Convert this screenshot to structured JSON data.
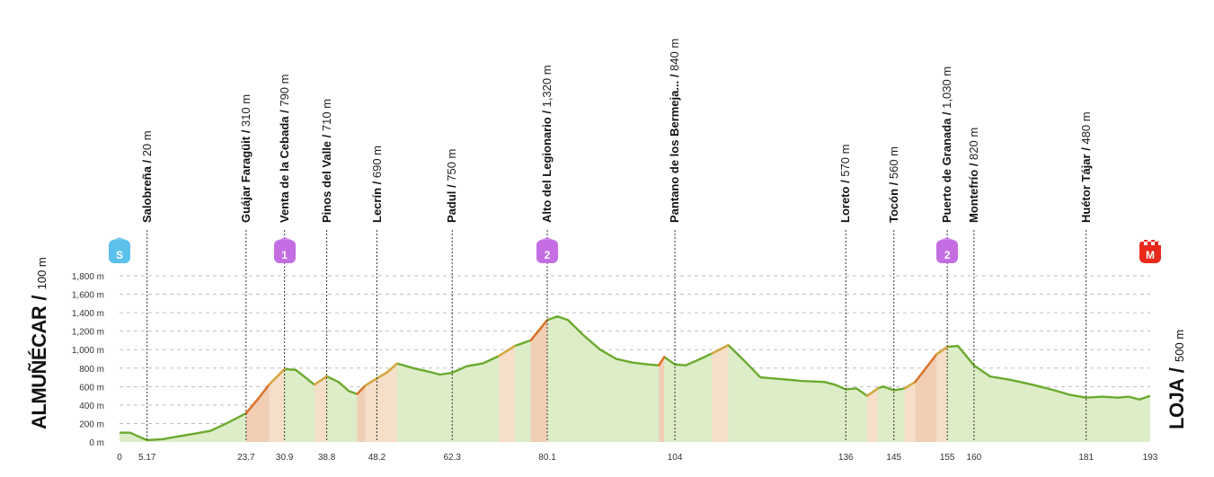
{
  "chart_data": {
    "type": "area",
    "title": "",
    "xlabel": "",
    "ylabel": "",
    "xlim": [
      0,
      193
    ],
    "ylim": [
      0,
      1800
    ],
    "grid": true,
    "y_ticks": [
      "0 m",
      "200 m",
      "400 m",
      "600 m",
      "800 m",
      "1,000 m",
      "1,200 m",
      "1,400 m",
      "1,600 m",
      "1,800 m"
    ],
    "y_tick_values": [
      0,
      200,
      400,
      600,
      800,
      1000,
      1200,
      1400,
      1600,
      1800
    ],
    "x_ticks": [
      "0",
      "5.17",
      "23.7",
      "30.9",
      "38.8",
      "48.2",
      "62.3",
      "80.1",
      "104",
      "136",
      "145",
      "155",
      "160",
      "181",
      "193"
    ],
    "x_tick_values": [
      0,
      5.17,
      23.7,
      30.9,
      38.8,
      48.2,
      62.3,
      80.1,
      104,
      136,
      145,
      155,
      160,
      181,
      193
    ],
    "start": {
      "name": "ALMUÑÉCAR",
      "sep": " / ",
      "altitude": "100 m"
    },
    "finish": {
      "name": "LOJA",
      "sep": " / ",
      "altitude": "500 m"
    },
    "waypoints": [
      {
        "km": 5.17,
        "name": "Salobreña",
        "altitude": "20 m"
      },
      {
        "km": 23.7,
        "name": "Guájar Faragüit",
        "altitude": "310 m"
      },
      {
        "km": 30.9,
        "name": "Venta de la Cebada",
        "altitude": "790 m"
      },
      {
        "km": 38.8,
        "name": "Pinos del Valle",
        "altitude": "710 m"
      },
      {
        "km": 48.2,
        "name": "Lecrín",
        "altitude": "690 m"
      },
      {
        "km": 62.3,
        "name": "Padul",
        "altitude": "750 m"
      },
      {
        "km": 80.1,
        "name": "Alto del Legionario",
        "altitude": "1,320 m"
      },
      {
        "km": 104,
        "name": "Pantano de los Bermeja...",
        "altitude": "840 m"
      },
      {
        "km": 136,
        "name": "Loreto",
        "altitude": "570 m"
      },
      {
        "km": 145,
        "name": "Tocón",
        "altitude": "560 m"
      },
      {
        "km": 155,
        "name": "Puerto de Granada",
        "altitude": "1,030 m"
      },
      {
        "km": 160,
        "name": "Montefrío",
        "altitude": "820 m"
      },
      {
        "km": 181,
        "name": "Huétor Tájar",
        "altitude": "480 m"
      }
    ],
    "badges": [
      {
        "km": 0,
        "text": "S",
        "kind": "start",
        "color": "#5bc0eb"
      },
      {
        "km": 30.9,
        "text": "1",
        "kind": "climb",
        "color": "#c56ee3"
      },
      {
        "km": 80.1,
        "text": "2",
        "kind": "climb",
        "color": "#c56ee3"
      },
      {
        "km": 155,
        "text": "2",
        "kind": "climb",
        "color": "#c56ee3"
      },
      {
        "km": 193,
        "text": "M",
        "kind": "finish",
        "color": "#e8291c"
      }
    ],
    "series": [
      {
        "x": [
          0,
          2,
          3.5,
          5.17,
          8,
          11,
          14,
          17,
          20,
          23.7,
          26,
          28,
          30.9,
          33,
          35,
          36.5,
          37.5,
          38.8,
          41,
          43,
          44.5,
          46,
          48.2,
          50,
          52,
          55,
          58,
          60,
          62.3,
          65,
          68,
          71,
          74,
          77,
          80.1,
          82,
          84,
          87,
          90,
          93,
          96,
          99,
          101,
          102,
          104,
          106,
          108,
          111,
          114,
          117,
          120,
          124,
          128,
          132,
          134,
          136,
          138,
          140,
          142,
          143,
          145,
          147,
          149,
          151,
          153,
          155,
          157,
          160,
          163,
          167,
          171,
          175,
          178,
          181,
          184,
          187,
          189,
          191,
          193
        ],
        "y": [
          100,
          100,
          60,
          20,
          30,
          60,
          90,
          120,
          200,
          310,
          470,
          620,
          790,
          780,
          690,
          620,
          660,
          710,
          650,
          550,
          520,
          610,
          690,
          750,
          850,
          800,
          760,
          730,
          750,
          820,
          850,
          930,
          1040,
          1100,
          1320,
          1360,
          1320,
          1150,
          1000,
          900,
          860,
          840,
          830,
          920,
          840,
          830,
          880,
          960,
          1050,
          880,
          700,
          680,
          660,
          650,
          620,
          570,
          580,
          500,
          580,
          600,
          560,
          580,
          650,
          800,
          950,
          1030,
          1040,
          830,
          710,
          670,
          620,
          560,
          510,
          480,
          490,
          480,
          490,
          460,
          500
        ],
        "line_color": "#6aaa2e",
        "fill_color": "#dcedc7"
      }
    ]
  }
}
